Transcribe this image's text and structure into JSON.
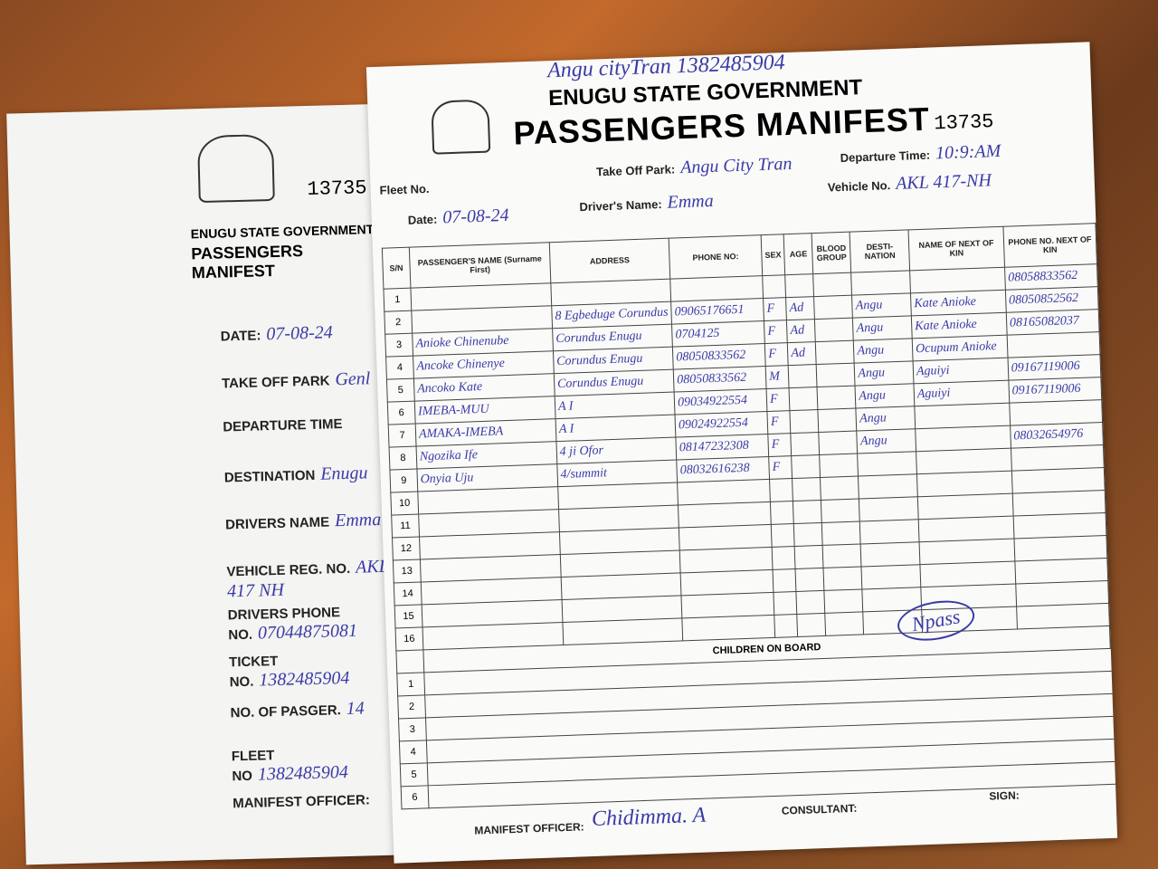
{
  "stub": {
    "number": "13735",
    "government": "ENUGU STATE GOVERNMENT",
    "title": "PASSENGERS MANIFEST",
    "fields": [
      {
        "label": "DATE:",
        "value": "07-08-24"
      },
      {
        "label": "TAKE OFF PARK",
        "value": "Genl"
      },
      {
        "label": "DEPARTURE TIME"
      },
      {
        "label": "DESTINATION",
        "value": "Enugu"
      },
      {
        "label": "DRIVERS NAME",
        "value": "Emma"
      },
      {
        "label": "VEHICLE REG. NO.",
        "value": "AKL 417 NH"
      },
      {
        "label": "DRIVERS PHONE NO.",
        "value": "07044875081"
      },
      {
        "label": "TICKET NO.",
        "value": "1382485904"
      },
      {
        "label": "NO. OF PASGER.",
        "value": "14"
      },
      {
        "label": "FLEET NO",
        "value": "1382485904"
      },
      {
        "label": "MANIFEST OFFICER:"
      }
    ]
  },
  "main": {
    "note": "Angu cityTran 1382485904",
    "government": "ENUGU STATE GOVERNMENT",
    "title": "PASSENGERS MANIFEST",
    "number": "13735",
    "fields": {
      "fleet": {
        "label": "Fleet No."
      },
      "take_off_park": {
        "label": "Take Off Park:",
        "value": "Angu City Tran"
      },
      "departure_time": {
        "label": "Departure Time:",
        "value": "10:9:AM"
      },
      "date": {
        "label": "Date:",
        "value": "07-08-24"
      },
      "driver": {
        "label": "Driver's Name:",
        "value": "Emma"
      },
      "vehicle": {
        "label": "Vehicle No.",
        "value": "AKL 417-NH"
      }
    },
    "table": {
      "columns": [
        "S/N",
        "PASSENGER'S NAME (Surname First)",
        "ADDRESS",
        "PHONE NO:",
        "SEX",
        "AGE",
        "BLOOD GROUP",
        "DESTI- NATION",
        "NAME OF NEXT OF KIN",
        "PHONE NO. NEXT OF KIN"
      ],
      "rows": [
        [
          "1",
          null,
          null,
          null,
          null,
          null,
          null,
          null,
          null,
          "08058833562"
        ],
        [
          "2",
          null,
          "8 Egbeduge Corundus",
          "09065176651",
          "F",
          "Ad",
          null,
          "Angu",
          "Kate Anioke",
          "08050852562"
        ],
        [
          "3",
          "Anioke Chinenube",
          "Corundus Enugu",
          "0704125",
          "F",
          "Ad",
          null,
          "Angu",
          "Kate Anioke",
          "08165082037"
        ],
        [
          "4",
          "Ancoke Chinenye",
          "Corundus Enugu",
          "08050833562",
          "F",
          "Ad",
          null,
          "Angu",
          "Ocupum Anioke",
          null
        ],
        [
          "5",
          "Ancoko Kate",
          "Corundus Enugu",
          "08050833562",
          "M",
          null,
          null,
          "Angu",
          "Aguiyi",
          "09167119006"
        ],
        [
          "6",
          "IMEBA-MUU",
          "A I",
          "09034922554",
          "F",
          null,
          null,
          "Angu",
          "Aguiyi",
          "09167119006"
        ],
        [
          "7",
          "AMAKA-IMEBA",
          "A I",
          "09024922554",
          "F",
          null,
          null,
          "Angu",
          null,
          null
        ],
        [
          "8",
          "Ngozika Ife",
          "4 ji Ofor",
          "08147232308",
          "F",
          null,
          null,
          "Angu",
          null,
          "08032654976"
        ],
        [
          "9",
          "Onyia Uju",
          "4/summit",
          "08032616238",
          "F",
          null,
          null,
          null,
          null,
          null
        ],
        [
          "10"
        ],
        [
          "11"
        ],
        [
          "12"
        ],
        [
          "13"
        ],
        [
          "14"
        ],
        [
          "15"
        ],
        [
          "16"
        ]
      ]
    },
    "children": {
      "title": "CHILDREN ON BOARD",
      "rows": [
        "1",
        "2",
        "3",
        "4",
        "5",
        "6"
      ]
    },
    "stamp": "Npass",
    "footer": {
      "officer_label": "MANIFEST OFFICER:",
      "officer": "Chidimma. A",
      "consultant": "CONSULTANT:",
      "sign": "SIGN:"
    }
  }
}
